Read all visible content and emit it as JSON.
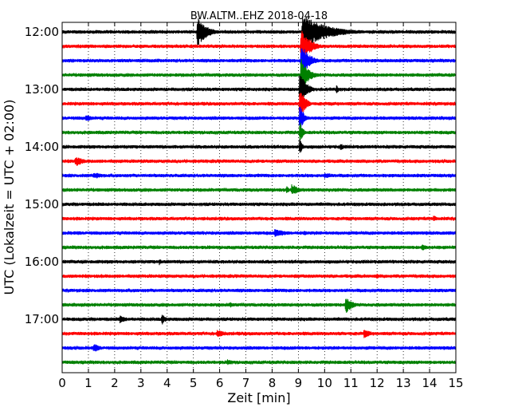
{
  "chart_data": {
    "type": "line",
    "title": "BW.ALTM..EHZ 2018-04-18",
    "xlabel": "Zeit  [min]",
    "ylabel": "UTC (Lokalzeit = UTC + 02:00)",
    "xlim": [
      0,
      15
    ],
    "x_ticks": [
      "0",
      "1",
      "2",
      "3",
      "4",
      "5",
      "6",
      "7",
      "8",
      "9",
      "10",
      "11",
      "12",
      "13",
      "14",
      "15"
    ],
    "y_ticks": [
      {
        "label": "12:00",
        "row": 0
      },
      {
        "label": "13:00",
        "row": 4
      },
      {
        "label": "14:00",
        "row": 8
      },
      {
        "label": "15:00",
        "row": 12
      },
      {
        "label": "16:00",
        "row": 16
      },
      {
        "label": "17:00",
        "row": 20
      }
    ],
    "grid_x": "dotted",
    "trace_colors": [
      "#000000",
      "#ff0000",
      "#0000ff",
      "#008000"
    ],
    "trace_interval_min": 15,
    "traces": [
      {
        "start": "12:00",
        "events": [
          {
            "t": 5.15,
            "amp": 2.6,
            "dur": 0.35
          },
          {
            "t": 9.15,
            "amp": 3.0,
            "dur": 0.9
          }
        ]
      },
      {
        "start": "12:15",
        "events": [
          {
            "t": 9.1,
            "amp": 3.0,
            "dur": 0.35
          }
        ]
      },
      {
        "start": "12:30",
        "events": [
          {
            "t": 9.1,
            "amp": 3.0,
            "dur": 0.3
          }
        ]
      },
      {
        "start": "12:45",
        "events": [
          {
            "t": 9.1,
            "amp": 3.0,
            "dur": 0.28
          }
        ]
      },
      {
        "start": "13:00",
        "events": [
          {
            "t": 9.05,
            "amp": 3.0,
            "dur": 0.25
          },
          {
            "t": 10.45,
            "amp": 0.8,
            "dur": 0.1
          }
        ]
      },
      {
        "start": "13:15",
        "events": [
          {
            "t": 9.05,
            "amp": 3.0,
            "dur": 0.2
          }
        ]
      },
      {
        "start": "13:30",
        "events": [
          {
            "t": 9.05,
            "amp": 2.5,
            "dur": 0.15
          },
          {
            "t": 0.9,
            "amp": 0.7,
            "dur": 0.3
          }
        ]
      },
      {
        "start": "13:45",
        "events": [
          {
            "t": 9.05,
            "amp": 2.0,
            "dur": 0.12
          }
        ]
      },
      {
        "start": "14:00",
        "events": [
          {
            "t": 9.05,
            "amp": 1.6,
            "dur": 0.1
          },
          {
            "t": 10.6,
            "amp": 0.6,
            "dur": 0.2
          }
        ]
      },
      {
        "start": "14:15",
        "events": [
          {
            "t": 0.5,
            "amp": 1.0,
            "dur": 0.3
          }
        ]
      },
      {
        "start": "14:30",
        "events": [
          {
            "t": 1.2,
            "amp": 0.6,
            "dur": 0.5
          },
          {
            "t": 10.0,
            "amp": 0.5,
            "dur": 0.6
          }
        ]
      },
      {
        "start": "14:45",
        "events": [
          {
            "t": 8.75,
            "amp": 1.1,
            "dur": 0.25
          },
          {
            "t": 8.55,
            "amp": 0.8,
            "dur": 0.1
          }
        ]
      },
      {
        "start": "15:00",
        "events": []
      },
      {
        "start": "15:15",
        "events": [
          {
            "t": 14.15,
            "amp": 0.6,
            "dur": 0.2
          }
        ]
      },
      {
        "start": "15:30",
        "events": [
          {
            "t": 8.1,
            "amp": 0.7,
            "dur": 0.6
          },
          {
            "t": 9.2,
            "amp": 0.5,
            "dur": 0.2
          }
        ]
      },
      {
        "start": "15:45",
        "events": [
          {
            "t": 13.7,
            "amp": 0.6,
            "dur": 0.3
          }
        ]
      },
      {
        "start": "16:00",
        "events": [
          {
            "t": 3.7,
            "amp": 0.6,
            "dur": 0.1
          }
        ]
      },
      {
        "start": "16:15",
        "events": [
          {
            "t": 12.0,
            "amp": 0.7,
            "dur": 0.05
          }
        ]
      },
      {
        "start": "16:30",
        "events": []
      },
      {
        "start": "16:45",
        "events": [
          {
            "t": 10.8,
            "amp": 1.6,
            "dur": 0.25
          },
          {
            "t": 6.4,
            "amp": 0.5,
            "dur": 0.3
          }
        ]
      },
      {
        "start": "17:00",
        "events": [
          {
            "t": 3.8,
            "amp": 1.0,
            "dur": 0.15
          },
          {
            "t": 2.2,
            "amp": 0.7,
            "dur": 0.3
          }
        ]
      },
      {
        "start": "17:15",
        "events": [
          {
            "t": 5.9,
            "amp": 0.7,
            "dur": 0.4
          },
          {
            "t": 11.5,
            "amp": 0.8,
            "dur": 0.3
          }
        ]
      },
      {
        "start": "17:30",
        "events": [
          {
            "t": 1.2,
            "amp": 0.8,
            "dur": 0.3
          }
        ]
      },
      {
        "start": "17:45",
        "events": [
          {
            "t": 6.3,
            "amp": 0.5,
            "dur": 0.4
          }
        ]
      }
    ]
  }
}
